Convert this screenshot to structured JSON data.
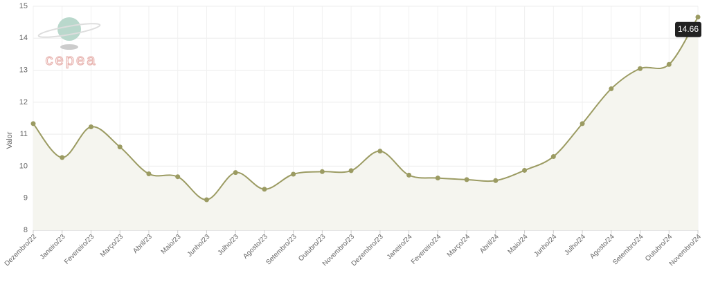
{
  "chart_data": {
    "type": "line",
    "y_label": "Valor",
    "logo_text": "cepea",
    "categories": [
      "Dezembro/22",
      "Janeiro/23",
      "Fevereiro/23",
      "Março/23",
      "Abril/23",
      "Maio/23",
      "Junho/23",
      "Julho/23",
      "Agosto/23",
      "Setembro/23",
      "Outubro/23",
      "Novembro/23",
      "Dezembro/23",
      "Janeiro/24",
      "Fevereiro/24",
      "Março/24",
      "Abril/24",
      "Maio/24",
      "Junho/24",
      "Julho/24",
      "Agosto/24",
      "Setembro/24",
      "Outubro/24",
      "Novembro/24"
    ],
    "values": [
      11.33,
      10.27,
      11.23,
      10.6,
      9.76,
      9.67,
      8.95,
      9.8,
      9.28,
      9.75,
      9.83,
      9.86,
      10.47,
      9.72,
      9.63,
      9.58,
      9.55,
      9.87,
      10.3,
      11.33,
      12.42,
      13.05,
      13.18,
      14.66
    ],
    "color": "#9b9b62",
    "area_color": "#f5f5ef",
    "ylim": [
      8,
      15
    ],
    "yticks": [
      8,
      9,
      10,
      11,
      12,
      13,
      14,
      15
    ],
    "grid": true,
    "tooltip_index": 23
  }
}
